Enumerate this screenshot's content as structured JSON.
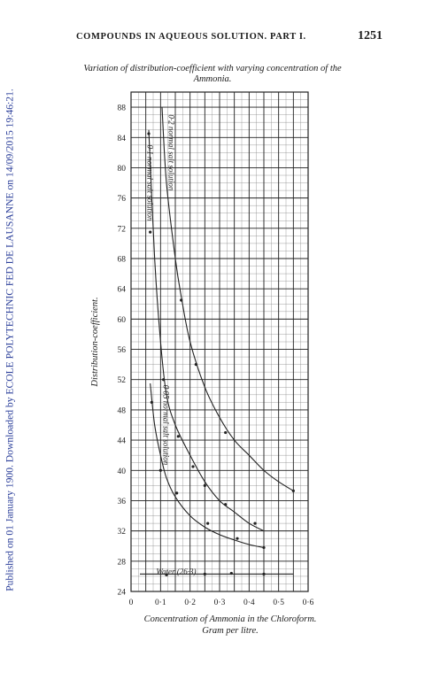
{
  "side_stamp": "Published on 01 January 1900. Downloaded by ECOLE POLYTECHNIC FED DE LAUSANNE on 14/09/2015 19:46:21.",
  "header": {
    "running_title": "COMPOUNDS IN AQUEOUS SOLUTION.   PART I.",
    "page_number": "1251"
  },
  "figure": {
    "caption_line1": "Variation of distribution-coefficient with varying concentration of the",
    "caption_line2": "Ammonia.",
    "xcaption_line1": "Concentration of Ammonia in the Chloroform.",
    "xcaption_line2": "Gram per litre."
  },
  "chart_data": {
    "type": "scatter",
    "xlabel": "",
    "ylabel": "Distribution-coefficient.",
    "xlim": [
      0,
      0.6
    ],
    "ylim": [
      24,
      90
    ],
    "grid": true,
    "xticks": [
      {
        "v": 0,
        "label": "0"
      },
      {
        "v": 0.1,
        "label": "0·1"
      },
      {
        "v": 0.2,
        "label": "0·2"
      },
      {
        "v": 0.3,
        "label": "0·3"
      },
      {
        "v": 0.4,
        "label": "0·4"
      },
      {
        "v": 0.5,
        "label": "0·5"
      },
      {
        "v": 0.6,
        "label": "0·6"
      }
    ],
    "yticks": [
      24,
      28,
      32,
      36,
      40,
      44,
      48,
      52,
      56,
      60,
      64,
      68,
      72,
      76,
      80,
      84,
      88
    ],
    "series": [
      {
        "name": "0·2 normal salt solution",
        "line": [
          [
            0.105,
            88
          ],
          [
            0.12,
            78
          ],
          [
            0.15,
            68
          ],
          [
            0.17,
            63
          ],
          [
            0.2,
            57
          ],
          [
            0.25,
            51
          ],
          [
            0.3,
            47
          ],
          [
            0.35,
            44
          ],
          [
            0.4,
            42
          ],
          [
            0.45,
            40
          ],
          [
            0.5,
            38.5
          ],
          [
            0.55,
            37.3
          ]
        ],
        "points": [
          [
            0.17,
            62.5
          ],
          [
            0.22,
            54
          ],
          [
            0.32,
            45
          ],
          [
            0.55,
            37.3
          ]
        ]
      },
      {
        "name": "0·1 normal salt solution",
        "line": [
          [
            0.06,
            85
          ],
          [
            0.08,
            68
          ],
          [
            0.1,
            57
          ],
          [
            0.12,
            50
          ],
          [
            0.15,
            46
          ],
          [
            0.2,
            42
          ],
          [
            0.25,
            38.5
          ],
          [
            0.3,
            36
          ],
          [
            0.35,
            34.5
          ],
          [
            0.4,
            33
          ],
          [
            0.45,
            32
          ]
        ],
        "points": [
          [
            0.06,
            84.5
          ],
          [
            0.065,
            71.5
          ],
          [
            0.11,
            52
          ],
          [
            0.16,
            44.5
          ],
          [
            0.21,
            40.5
          ],
          [
            0.25,
            38
          ],
          [
            0.32,
            35.5
          ],
          [
            0.42,
            33
          ]
        ]
      },
      {
        "name": "0·05 normal salt solution",
        "line": [
          [
            0.065,
            51.5
          ],
          [
            0.08,
            46
          ],
          [
            0.1,
            42
          ],
          [
            0.12,
            39
          ],
          [
            0.15,
            36.5
          ],
          [
            0.2,
            34
          ],
          [
            0.25,
            32.5
          ],
          [
            0.3,
            31.5
          ],
          [
            0.35,
            30.8
          ],
          [
            0.4,
            30.2
          ],
          [
            0.45,
            29.8
          ]
        ],
        "points": [
          [
            0.07,
            49
          ],
          [
            0.1,
            40
          ],
          [
            0.155,
            37
          ],
          [
            0.26,
            33
          ],
          [
            0.36,
            31
          ],
          [
            0.45,
            29.8
          ]
        ]
      },
      {
        "name": "Water (26·3)",
        "line": [
          [
            0.03,
            26.3
          ],
          [
            0.55,
            26.3
          ]
        ],
        "points": [
          [
            0.12,
            26.2
          ],
          [
            0.25,
            26.3
          ],
          [
            0.34,
            26.4
          ],
          [
            0.45,
            26.3
          ]
        ]
      }
    ],
    "curve_labels": [
      {
        "text": "0·2 normal salt solution",
        "x": 0.128,
        "y": 82
      },
      {
        "text": "0·1 normal salt solution",
        "x": 0.055,
        "y": 78
      },
      {
        "text": "0·05 normal salt solution",
        "x": 0.11,
        "y": 46
      },
      {
        "text": "Water (26·3)",
        "x": 0.085,
        "y": 26.3
      }
    ]
  }
}
